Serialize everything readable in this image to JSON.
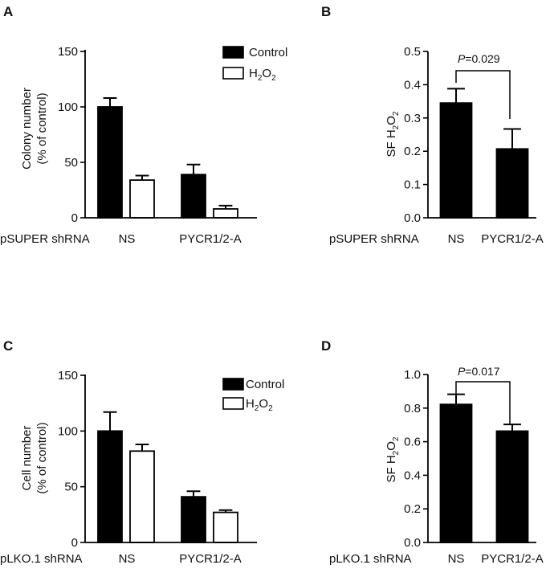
{
  "figure": {
    "colors": {
      "control": "#000000",
      "h2o2": "#ffffff",
      "axis": "#000000"
    }
  },
  "chart_data": [
    {
      "panel": "A",
      "type": "bar",
      "ylabel_lines": [
        "Colony number",
        "(% of control)"
      ],
      "group_label": "pSUPER shRNA",
      "categories": [
        "NS",
        "PYCR1/2-A"
      ],
      "ylim": [
        0,
        150
      ],
      "yticks": [
        0,
        50,
        100,
        150
      ],
      "tick_labels": [
        "0",
        "50",
        "100",
        "150"
      ],
      "legend": [
        "Control",
        "H2O2"
      ],
      "legend_position": "top-right",
      "series": [
        {
          "name": "Control",
          "values": [
            100,
            39
          ],
          "errors": [
            8,
            9
          ]
        },
        {
          "name": "H2O2",
          "values": [
            34,
            8
          ],
          "errors": [
            4,
            3
          ]
        }
      ]
    },
    {
      "panel": "B",
      "type": "bar",
      "ylabel": "SF H2O2",
      "group_label": "pSUPER shRNA",
      "categories": [
        "NS",
        "PYCR1/2-A"
      ],
      "ylim": [
        0,
        0.5
      ],
      "yticks": [
        0,
        0.1,
        0.2,
        0.3,
        0.4,
        0.5
      ],
      "tick_labels": [
        "0.0",
        "0.1",
        "0.2",
        "0.3",
        "0.4",
        "0.5"
      ],
      "series": [
        {
          "name": "SF H2O2",
          "values": [
            0.345,
            0.207
          ],
          "errors": [
            0.043,
            0.06
          ]
        }
      ],
      "annotation": {
        "p_label": "P",
        "p_value": "=0.029"
      }
    },
    {
      "panel": "C",
      "type": "bar",
      "ylabel_lines": [
        "Cell number",
        "(% of control)"
      ],
      "group_label": "pLKO.1 shRNA",
      "categories": [
        "NS",
        "PYCR1/2-A"
      ],
      "ylim": [
        0,
        150
      ],
      "yticks": [
        0,
        50,
        100,
        150
      ],
      "tick_labels": [
        "0",
        "50",
        "100",
        "150"
      ],
      "legend": [
        "Control",
        "H2O2"
      ],
      "legend_position": "top-right",
      "series": [
        {
          "name": "Control",
          "values": [
            100,
            41
          ],
          "errors": [
            17,
            5
          ]
        },
        {
          "name": "H2O2",
          "values": [
            82,
            27
          ],
          "errors": [
            6,
            2
          ]
        }
      ]
    },
    {
      "panel": "D",
      "type": "bar",
      "ylabel": "SF H2O2",
      "group_label": "pLKO.1 shRNA",
      "categories": [
        "NS",
        "PYCR1/2-A"
      ],
      "ylim": [
        0,
        1.0
      ],
      "yticks": [
        0,
        0.2,
        0.4,
        0.6,
        0.8,
        1.0
      ],
      "tick_labels": [
        "0.0",
        "0.2",
        "0.4",
        "0.6",
        "0.8",
        "1.0"
      ],
      "series": [
        {
          "name": "SF H2O2",
          "values": [
            0.822,
            0.663
          ],
          "errors": [
            0.06,
            0.04
          ]
        }
      ],
      "annotation": {
        "p_label": "P",
        "p_value": "=0.017"
      }
    }
  ]
}
